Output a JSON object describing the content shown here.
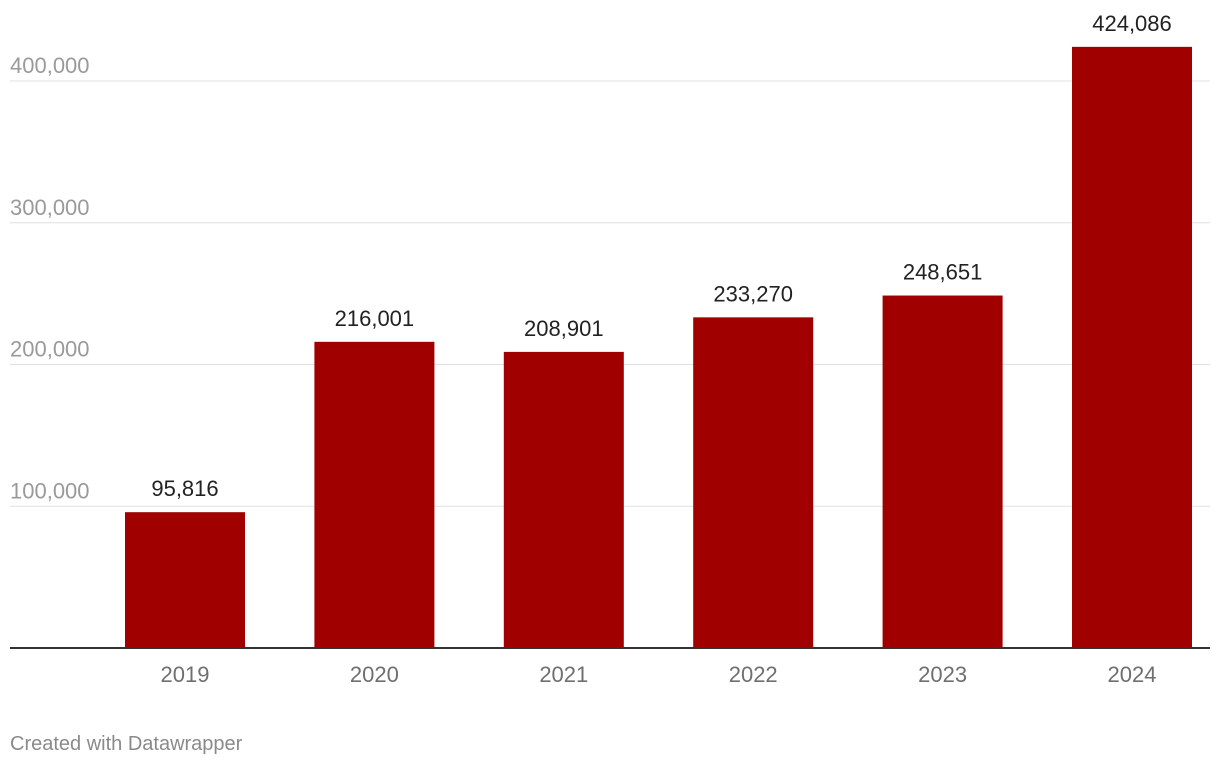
{
  "chart_data": {
    "type": "bar",
    "categories": [
      "2019",
      "2020",
      "2021",
      "2022",
      "2023",
      "2024"
    ],
    "values": [
      95816,
      216001,
      208901,
      233270,
      248651,
      424086
    ],
    "value_labels": [
      "95,816",
      "216,001",
      "208,901",
      "233,270",
      "248,651",
      "424,086"
    ],
    "y_ticks": [
      100000,
      200000,
      300000,
      400000
    ],
    "y_tick_labels": [
      "100,000",
      "200,000",
      "300,000",
      "400,000"
    ],
    "ylim": [
      0,
      400000
    ],
    "title": "",
    "xlabel": "",
    "ylabel": "",
    "grid": true,
    "colors": {
      "bar": "#a00000",
      "grid": "#e0e0e0",
      "axis": "#333333",
      "tick_label": "#9a9a9a",
      "category_label": "#6f6f6f",
      "value_label": "#222222"
    }
  },
  "footer": {
    "credit": "Created with Datawrapper"
  }
}
